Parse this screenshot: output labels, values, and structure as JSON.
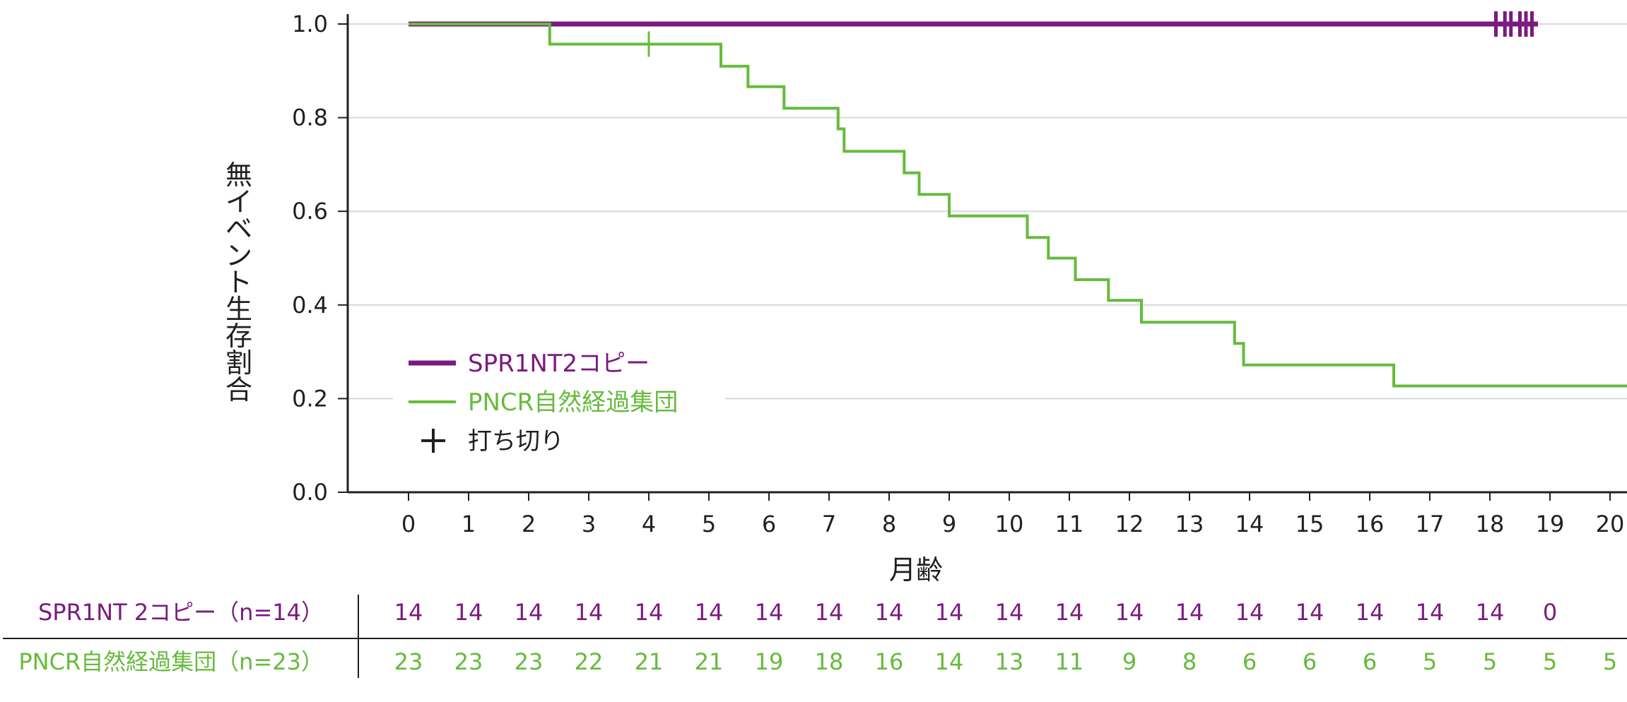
{
  "chart_data": {
    "type": "line",
    "subtype": "kaplan-meier",
    "xlabel": "月齢",
    "ylabel": "無イベント生存割合",
    "xlim": [
      0,
      20
    ],
    "ylim": [
      0,
      1.0
    ],
    "x_ticks": [
      0,
      1,
      2,
      3,
      4,
      5,
      6,
      7,
      8,
      9,
      10,
      11,
      12,
      13,
      14,
      15,
      16,
      17,
      18,
      19,
      20
    ],
    "y_ticks": [
      "0.0",
      "0.2",
      "0.4",
      "0.6",
      "0.8",
      "1.0"
    ],
    "grid": "horizontal",
    "legend_position": "lower-left",
    "legend": {
      "censor_label": "打ち切り",
      "censor_symbol": "+"
    },
    "series": [
      {
        "name": "SPR1NT2コピー",
        "color": "#7b1a7f",
        "points": [
          [
            0,
            1.0
          ],
          [
            18.8,
            1.0
          ]
        ],
        "censor_x": [
          18.1,
          18.25,
          18.35,
          18.5,
          18.6,
          18.7
        ]
      },
      {
        "name": "PNCR自然経過集団",
        "color": "#66bb3c",
        "points": [
          [
            0,
            1.0
          ],
          [
            2.35,
            1.0
          ],
          [
            2.35,
            0.957
          ],
          [
            5.2,
            0.957
          ],
          [
            5.2,
            0.91
          ],
          [
            5.65,
            0.91
          ],
          [
            5.65,
            0.866
          ],
          [
            6.25,
            0.866
          ],
          [
            6.25,
            0.82
          ],
          [
            7.15,
            0.82
          ],
          [
            7.15,
            0.776
          ],
          [
            7.25,
            0.776
          ],
          [
            7.25,
            0.728
          ],
          [
            8.25,
            0.728
          ],
          [
            8.25,
            0.682
          ],
          [
            8.5,
            0.682
          ],
          [
            8.5,
            0.636
          ],
          [
            9.0,
            0.636
          ],
          [
            9.0,
            0.59
          ],
          [
            10.3,
            0.59
          ],
          [
            10.3,
            0.544
          ],
          [
            10.65,
            0.544
          ],
          [
            10.65,
            0.5
          ],
          [
            11.1,
            0.5
          ],
          [
            11.1,
            0.454
          ],
          [
            11.65,
            0.454
          ],
          [
            11.65,
            0.41
          ],
          [
            12.2,
            0.41
          ],
          [
            12.2,
            0.363
          ],
          [
            13.75,
            0.363
          ],
          [
            13.75,
            0.318
          ],
          [
            13.9,
            0.318
          ],
          [
            13.9,
            0.272
          ],
          [
            16.4,
            0.272
          ],
          [
            16.4,
            0.227
          ],
          [
            20.5,
            0.227
          ]
        ],
        "censor_x": [
          4.0
        ]
      }
    ],
    "risk_table": {
      "rows": [
        {
          "label": "SPR1NT 2コピー（n=14）",
          "color": "#7b1a7f",
          "values": [
            "14",
            "14",
            "14",
            "14",
            "14",
            "14",
            "14",
            "14",
            "14",
            "14",
            "14",
            "14",
            "14",
            "14",
            "14",
            "14",
            "14",
            "14",
            "14",
            "0"
          ]
        },
        {
          "label": "PNCR自然経過集団（n=23）",
          "color": "#66bb3c",
          "values": [
            "23",
            "23",
            "23",
            "22",
            "21",
            "21",
            "19",
            "18",
            "16",
            "14",
            "13",
            "11",
            "9",
            "8",
            "6",
            "6",
            "6",
            "5",
            "5",
            "5",
            "5"
          ]
        }
      ]
    }
  }
}
